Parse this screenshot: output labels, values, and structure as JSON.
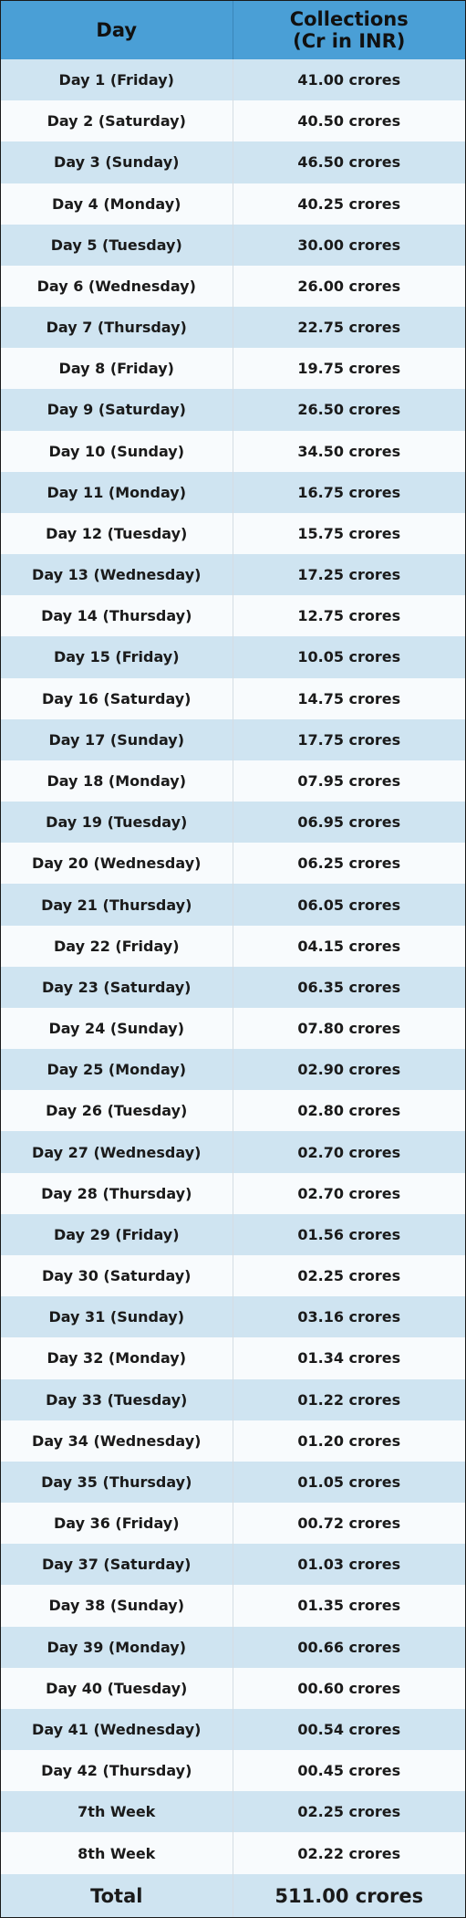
{
  "table": {
    "headers": {
      "day": "Day",
      "collections_line1": "Collections",
      "collections_line2": "(Cr in INR)"
    },
    "rows": [
      {
        "day": "Day 1 (Friday)",
        "collection": "41.00 crores"
      },
      {
        "day": "Day 2 (Saturday)",
        "collection": "40.50 crores"
      },
      {
        "day": "Day 3 (Sunday)",
        "collection": "46.50 crores"
      },
      {
        "day": "Day 4 (Monday)",
        "collection": "40.25 crores"
      },
      {
        "day": "Day 5 (Tuesday)",
        "collection": "30.00 crores"
      },
      {
        "day": "Day 6 (Wednesday)",
        "collection": "26.00 crores"
      },
      {
        "day": "Day 7 (Thursday)",
        "collection": "22.75 crores"
      },
      {
        "day": "Day 8 (Friday)",
        "collection": "19.75 crores"
      },
      {
        "day": "Day 9 (Saturday)",
        "collection": "26.50 crores"
      },
      {
        "day": "Day 10 (Sunday)",
        "collection": "34.50 crores"
      },
      {
        "day": "Day 11 (Monday)",
        "collection": "16.75 crores"
      },
      {
        "day": "Day 12 (Tuesday)",
        "collection": "15.75 crores"
      },
      {
        "day": "Day 13 (Wednesday)",
        "collection": "17.25 crores"
      },
      {
        "day": "Day 14 (Thursday)",
        "collection": "12.75 crores"
      },
      {
        "day": "Day 15 (Friday)",
        "collection": "10.05 crores"
      },
      {
        "day": "Day 16 (Saturday)",
        "collection": "14.75 crores"
      },
      {
        "day": "Day 17 (Sunday)",
        "collection": "17.75 crores"
      },
      {
        "day": "Day 18 (Monday)",
        "collection": "07.95 crores"
      },
      {
        "day": "Day 19 (Tuesday)",
        "collection": "06.95 crores"
      },
      {
        "day": "Day 20 (Wednesday)",
        "collection": "06.25 crores"
      },
      {
        "day": "Day 21 (Thursday)",
        "collection": "06.05 crores"
      },
      {
        "day": "Day 22 (Friday)",
        "collection": "04.15 crores"
      },
      {
        "day": "Day 23 (Saturday)",
        "collection": "06.35 crores"
      },
      {
        "day": "Day 24 (Sunday)",
        "collection": "07.80 crores"
      },
      {
        "day": "Day 25 (Monday)",
        "collection": "02.90 crores"
      },
      {
        "day": "Day 26 (Tuesday)",
        "collection": "02.80 crores"
      },
      {
        "day": "Day 27 (Wednesday)",
        "collection": "02.70 crores"
      },
      {
        "day": "Day 28 (Thursday)",
        "collection": "02.70 crores"
      },
      {
        "day": "Day 29 (Friday)",
        "collection": "01.56 crores"
      },
      {
        "day": "Day 30 (Saturday)",
        "collection": "02.25 crores"
      },
      {
        "day": "Day 31 (Sunday)",
        "collection": "03.16 crores"
      },
      {
        "day": "Day 32 (Monday)",
        "collection": "01.34 crores"
      },
      {
        "day": "Day 33 (Tuesday)",
        "collection": "01.22 crores"
      },
      {
        "day": "Day 34 (Wednesday)",
        "collection": "01.20 crores"
      },
      {
        "day": "Day 35 (Thursday)",
        "collection": "01.05 crores"
      },
      {
        "day": "Day 36 (Friday)",
        "collection": "00.72 crores"
      },
      {
        "day": "Day 37 (Saturday)",
        "collection": "01.03 crores"
      },
      {
        "day": "Day 38 (Sunday)",
        "collection": "01.35 crores"
      },
      {
        "day": "Day 39 (Monday)",
        "collection": "00.66 crores"
      },
      {
        "day": "Day 40 (Tuesday)",
        "collection": "00.60 crores"
      },
      {
        "day": "Day 41 (Wednesday)",
        "collection": "00.54 crores"
      },
      {
        "day": "Day 42 (Thursday)",
        "collection": "00.45 crores"
      },
      {
        "day": "7th Week",
        "collection": "02.25 crores"
      },
      {
        "day": "8th Week",
        "collection": "02.22 crores"
      }
    ],
    "total": {
      "label": "Total",
      "value": "511.00 crores"
    }
  },
  "colors": {
    "header_bg": "#4a9fd6",
    "row_alt_bg": "#cfe4f1",
    "row_bg": "#f8fbfd",
    "border": "#1a1a1a"
  }
}
